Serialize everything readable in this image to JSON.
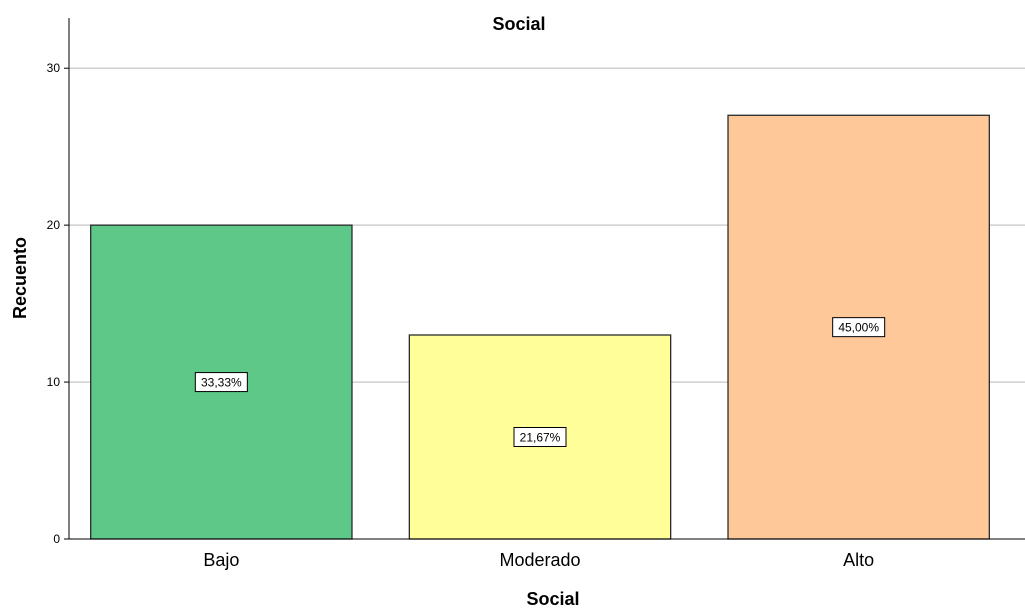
{
  "chart_data": {
    "type": "bar",
    "title": "Social",
    "xlabel": "Social",
    "ylabel": "Recuento",
    "categories": [
      "Bajo",
      "Moderado",
      "Alto"
    ],
    "values": [
      20,
      13,
      27
    ],
    "data_labels": [
      "33,33%",
      "21,67%",
      "45,00%"
    ],
    "colors": [
      "#5dc887",
      "#fffe99",
      "#fec898"
    ],
    "yticks": [
      0,
      10,
      20,
      30
    ],
    "ylim": [
      0,
      33.2
    ],
    "grid": true
  }
}
